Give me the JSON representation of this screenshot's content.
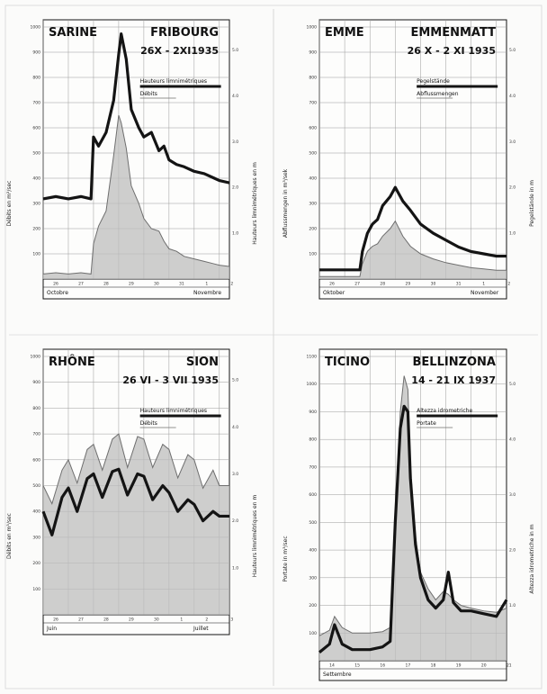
{
  "colors": {
    "ink": "#141414",
    "fill": "#bdbdbd",
    "grid": "#9a9a9a",
    "thin": "#6e6e6e"
  },
  "chart_data": [
    {
      "type": "line",
      "title_left": "SARINE",
      "title_right": "FRIBOURG",
      "date_range": "26X - 2XI1935",
      "legend": [
        "Hauteurs limnimétriques",
        "Débits"
      ],
      "ylabel_left": "Débits en m³/sec",
      "ylabel_right": "Hauteurs limnimétriques en m",
      "y_left_ticks": [
        "100",
        "200",
        "300",
        "400",
        "500",
        "600",
        "700",
        "800",
        "900",
        "1000"
      ],
      "y_right_ticks": [
        "1.0",
        "2.0",
        "3.0",
        "4.0",
        "5.0"
      ],
      "day_ticks": [
        "26",
        "27",
        "28",
        "29",
        "30",
        "31",
        "1",
        "2"
      ],
      "month_labels": [
        "Octobre",
        "Novembre"
      ],
      "ylim_left": [
        0,
        1000
      ],
      "ylim_right": [
        0,
        5.5
      ],
      "x": [
        0,
        0.5,
        1.0,
        1.5,
        1.9,
        2.0,
        2.2,
        2.5,
        2.8,
        3.0,
        3.1,
        3.3,
        3.5,
        3.8,
        4.0,
        4.3,
        4.6,
        4.8,
        5.0,
        5.3,
        5.6,
        6.0,
        6.4,
        6.8,
        7.0,
        7.4
      ],
      "series": [
        {
          "name": "Hauteurs limnimétriques",
          "axis": "right",
          "values": [
            1.75,
            1.8,
            1.75,
            1.8,
            1.75,
            3.1,
            2.9,
            3.2,
            3.9,
            4.9,
            5.35,
            4.8,
            3.7,
            3.3,
            3.1,
            3.2,
            2.8,
            2.9,
            2.6,
            2.5,
            2.45,
            2.35,
            2.3,
            2.2,
            2.15,
            2.1
          ]
        },
        {
          "name": "Débits",
          "axis": "left",
          "values": [
            20,
            25,
            20,
            25,
            20,
            140,
            210,
            270,
            490,
            650,
            620,
            520,
            370,
            300,
            240,
            200,
            190,
            150,
            120,
            110,
            90,
            80,
            70,
            60,
            55,
            50
          ]
        }
      ]
    },
    {
      "type": "line",
      "title_left": "EMME",
      "title_right": "EMMENMATT",
      "date_range": "26 X - 2 XI 1935",
      "legend": [
        "Pegelstände",
        "Abflussmengen"
      ],
      "ylabel_left": "Abflussmengen in m³/sek",
      "ylabel_right": "Pegelstände in m",
      "y_left_ticks": [
        "100",
        "200",
        "300",
        "400",
        "500",
        "600",
        "700",
        "800",
        "900",
        "1000"
      ],
      "y_right_ticks": [
        "1.0",
        "2.0",
        "3.0",
        "4.0",
        "5.0"
      ],
      "day_ticks": [
        "26",
        "27",
        "28",
        "29",
        "30",
        "31",
        "1",
        "2"
      ],
      "month_labels": [
        "Oktober",
        "November"
      ],
      "ylim_left": [
        0,
        1000
      ],
      "ylim_right": [
        0,
        5.5
      ],
      "x": [
        0,
        1.0,
        1.6,
        1.7,
        1.9,
        2.1,
        2.3,
        2.5,
        2.8,
        3.0,
        3.1,
        3.3,
        3.6,
        4.0,
        4.5,
        5.0,
        5.5,
        6.0,
        6.5,
        7.0,
        7.4
      ],
      "series": [
        {
          "name": "Pegelstände",
          "axis": "right",
          "values": [
            0.2,
            0.2,
            0.2,
            0.6,
            1.0,
            1.2,
            1.3,
            1.6,
            1.8,
            2.0,
            1.9,
            1.7,
            1.5,
            1.2,
            1.0,
            0.85,
            0.7,
            0.6,
            0.55,
            0.5,
            0.5
          ]
        },
        {
          "name": "Abflussmengen",
          "axis": "left",
          "values": [
            10,
            10,
            10,
            60,
            110,
            130,
            140,
            170,
            200,
            230,
            210,
            170,
            130,
            100,
            80,
            65,
            55,
            45,
            40,
            35,
            35
          ]
        }
      ]
    },
    {
      "type": "line",
      "title_left": "RHÔNE",
      "title_right": "SION",
      "date_range": "26 VI - 3 VII 1935",
      "legend": [
        "Hauteurs limnimétriques",
        "Débits"
      ],
      "ylabel_left": "Débits en m³/sec",
      "ylabel_right": "Hauteurs limnimétriques en m",
      "y_left_ticks": [
        "100",
        "200",
        "300",
        "400",
        "500",
        "600",
        "700",
        "800",
        "900",
        "1000"
      ],
      "y_right_ticks": [
        "1.0",
        "2.0",
        "3.0",
        "4.0",
        "5.0"
      ],
      "day_ticks": [
        "26",
        "27",
        "28",
        "29",
        "30",
        "1",
        "2",
        "3"
      ],
      "month_labels": [
        "Juin",
        "Juillet"
      ],
      "ylim_left": [
        0,
        1000
      ],
      "ylim_right": [
        0,
        5.5
      ],
      "x": [
        0,
        0.35,
        0.75,
        1.0,
        1.35,
        1.75,
        2.0,
        2.35,
        2.75,
        3.0,
        3.35,
        3.75,
        4.0,
        4.35,
        4.75,
        5.0,
        5.35,
        5.75,
        6.0,
        6.35,
        6.75,
        7.0,
        7.4
      ],
      "series": [
        {
          "name": "Débits",
          "axis": "left",
          "values": [
            500,
            430,
            560,
            600,
            510,
            640,
            660,
            560,
            680,
            700,
            570,
            690,
            680,
            570,
            660,
            640,
            530,
            620,
            600,
            490,
            560,
            500,
            500
          ]
        },
        {
          "name": "Hauteurs limnimétriques",
          "axis": "right",
          "values": [
            2.2,
            1.7,
            2.5,
            2.7,
            2.2,
            2.9,
            3.0,
            2.5,
            3.05,
            3.1,
            2.55,
            3.0,
            2.95,
            2.45,
            2.75,
            2.6,
            2.2,
            2.45,
            2.35,
            2.0,
            2.2,
            2.1,
            2.1
          ]
        }
      ]
    },
    {
      "type": "line",
      "title_left": "TICINO",
      "title_right": "BELLINZONA",
      "date_range": "14 - 21 IX 1937",
      "legend": [
        "Altezza idrometriche",
        "Portate"
      ],
      "ylabel_left": "Portate in m³/sec",
      "ylabel_right": "Altezza idrometriche in m",
      "y_left_ticks": [
        "100",
        "200",
        "300",
        "400",
        "500",
        "600",
        "700",
        "800",
        "900",
        "1000",
        "1100"
      ],
      "y_right_ticks": [
        "1.0",
        "2.0",
        "3.0",
        "4.0",
        "5.0"
      ],
      "day_ticks": [
        "14",
        "15",
        "16",
        "17",
        "18",
        "19",
        "20",
        "21"
      ],
      "month_labels": [
        "Settembre"
      ],
      "ylim_left": [
        0,
        1100
      ],
      "ylim_right": [
        0,
        5.5
      ],
      "x": [
        0,
        0.4,
        0.6,
        0.9,
        1.3,
        2.0,
        2.5,
        2.8,
        3.0,
        3.2,
        3.35,
        3.5,
        3.6,
        3.8,
        4.0,
        4.3,
        4.6,
        4.9,
        5.1,
        5.3,
        5.6,
        6.0,
        6.5,
        7.0,
        7.4
      ],
      "series": [
        {
          "name": "Portate",
          "axis": "left",
          "values": [
            90,
            110,
            160,
            120,
            100,
            100,
            105,
            120,
            500,
            900,
            1030,
            980,
            700,
            450,
            320,
            260,
            220,
            250,
            240,
            220,
            200,
            190,
            180,
            175,
            190
          ]
        },
        {
          "name": "Altezza idrometriche",
          "axis": "right",
          "values": [
            0.15,
            0.3,
            0.65,
            0.3,
            0.2,
            0.2,
            0.25,
            0.35,
            2.5,
            4.2,
            4.6,
            4.5,
            3.3,
            2.1,
            1.5,
            1.1,
            0.95,
            1.1,
            1.6,
            1.05,
            0.9,
            0.9,
            0.85,
            0.8,
            1.1
          ]
        }
      ]
    }
  ]
}
